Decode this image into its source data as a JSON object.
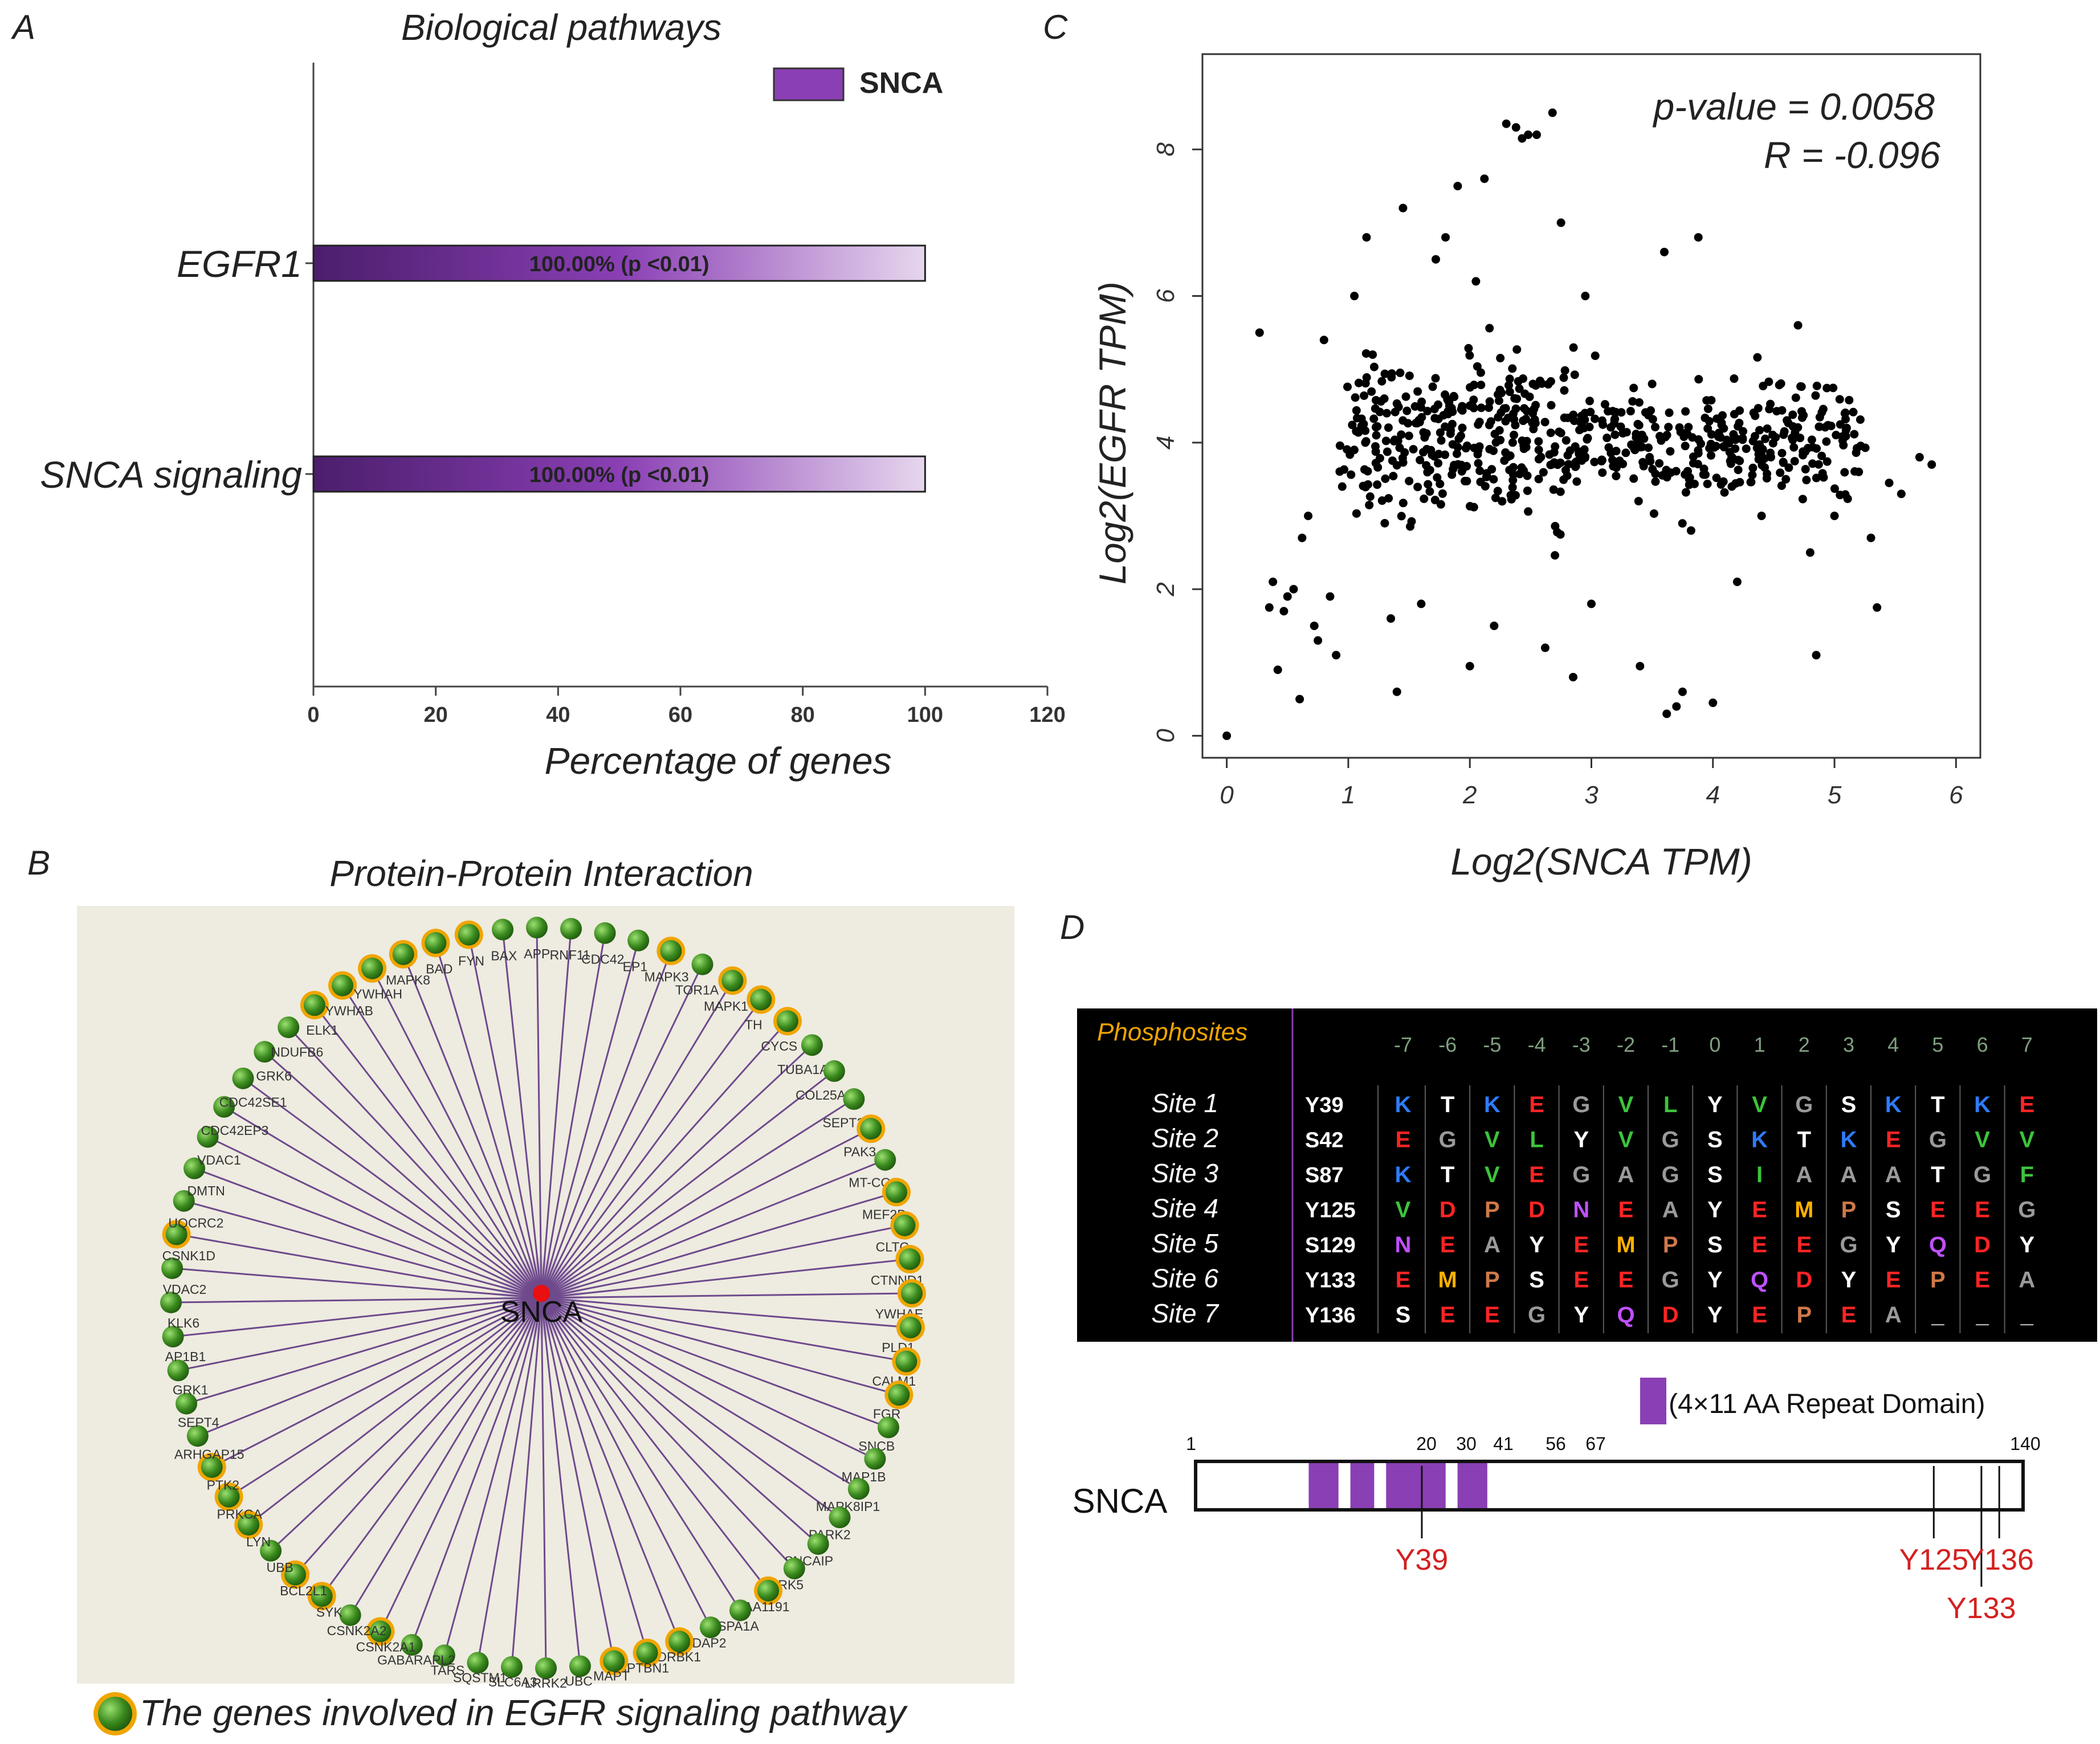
{
  "colors": {
    "bar_dark": "#4b1e6c",
    "bar_mid": "#8a3fb4",
    "bar_light": "#e6d6ee",
    "legend_purple": "#8a3fb4",
    "network_bg": "#eeebe0",
    "edge": "#6e4a8c",
    "node_green": "#3b8a1e",
    "ring_orange": "#f0a500",
    "center_red": "#e81010",
    "table_bg": "#000000",
    "phospho_orange": "#f0a500",
    "red_label": "#d42020",
    "repeat_purple": "#8a3fb4",
    "aa_K": "#2e7cff",
    "aa_E": "#ff2424",
    "aa_D": "#ff2424",
    "aa_V": "#3cc43c",
    "aa_L": "#3cc43c",
    "aa_I": "#3cc43c",
    "aa_F": "#3cc43c",
    "aa_G": "#9a9a9a",
    "aa_A": "#9a9a9a",
    "aa_N": "#c050ff",
    "aa_Q": "#c050ff",
    "aa_M": "#ffb000",
    "aa_P": "#d0784a",
    "aa_Y": "#ffffff",
    "aa_T": "#ffffff",
    "aa_S": "#ffffff",
    "aa__": "#ffffff"
  },
  "panel_letters": {
    "a": "A",
    "b": "B",
    "c": "C",
    "d": "D"
  },
  "chart_data": [
    {
      "id": "A",
      "type": "bar",
      "orientation": "horizontal",
      "title": "Biological pathways",
      "categories": [
        "EGFR1",
        "SNCA signaling"
      ],
      "values": [
        100,
        100
      ],
      "data_labels": [
        "100.00% (p <0.01)",
        "100.00% (p <0.01)"
      ],
      "legend": [
        "SNCA"
      ],
      "legend_position": "top-right",
      "xlabel": "Percentage of genes",
      "xlim": [
        0,
        120
      ],
      "xticks": [
        0,
        20,
        40,
        60,
        80,
        100,
        120
      ]
    },
    {
      "id": "C",
      "type": "scatter",
      "xlabel": "Log2(SNCA TPM)",
      "ylabel": "Log2(EGFR TPM)",
      "xlim": [
        -0.2,
        6.2
      ],
      "ylim": [
        -0.3,
        9.3
      ],
      "xticks": [
        0,
        1,
        2,
        3,
        4,
        5,
        6
      ],
      "yticks": [
        0,
        2,
        4,
        6,
        8
      ],
      "annotations": [
        "p-value = 0.0058",
        "R = -0.096"
      ],
      "n_points": 700,
      "points": [
        [
          0,
          0
        ],
        [
          0.27,
          5.5
        ],
        [
          0.35,
          1.75
        ],
        [
          0.38,
          2.1
        ],
        [
          0.42,
          0.9
        ],
        [
          0.47,
          1.7
        ],
        [
          0.5,
          1.9
        ],
        [
          0.55,
          2.0
        ],
        [
          0.6,
          0.5
        ],
        [
          0.62,
          2.7
        ],
        [
          0.67,
          3.0
        ],
        [
          0.72,
          1.5
        ],
        [
          0.75,
          1.3
        ],
        [
          0.8,
          5.4
        ],
        [
          0.85,
          1.9
        ],
        [
          0.9,
          1.1
        ],
        [
          0.95,
          3.4
        ],
        [
          1.05,
          6.0
        ],
        [
          1.15,
          6.8
        ],
        [
          1.2,
          5.2
        ],
        [
          1.4,
          0.6
        ],
        [
          1.3,
          2.9
        ],
        [
          1.35,
          1.6
        ],
        [
          1.45,
          7.2
        ],
        [
          1.6,
          1.8
        ],
        [
          1.72,
          6.5
        ],
        [
          1.8,
          6.8
        ],
        [
          1.9,
          7.5
        ],
        [
          2.0,
          0.95
        ],
        [
          2.05,
          6.2
        ],
        [
          2.12,
          7.6
        ],
        [
          2.2,
          1.5
        ],
        [
          2.3,
          8.35
        ],
        [
          2.38,
          8.3
        ],
        [
          2.43,
          8.15
        ],
        [
          2.48,
          8.2
        ],
        [
          2.55,
          8.2
        ],
        [
          2.62,
          1.2
        ],
        [
          2.68,
          8.5
        ],
        [
          2.75,
          7.0
        ],
        [
          2.85,
          0.8
        ],
        [
          2.95,
          6.0
        ],
        [
          3.0,
          1.8
        ],
        [
          3.4,
          0.95
        ],
        [
          3.5,
          4.8
        ],
        [
          3.6,
          6.6
        ],
        [
          3.62,
          0.3
        ],
        [
          3.7,
          0.4
        ],
        [
          3.75,
          0.6
        ],
        [
          3.82,
          2.8
        ],
        [
          3.88,
          6.8
        ],
        [
          4.0,
          0.45
        ],
        [
          4.2,
          2.1
        ],
        [
          4.4,
          3.0
        ],
        [
          4.6,
          3.5
        ],
        [
          4.7,
          5.6
        ],
        [
          4.8,
          2.5
        ],
        [
          4.85,
          1.1
        ],
        [
          5.0,
          3.0
        ],
        [
          5.1,
          4.2
        ],
        [
          5.2,
          3.6
        ],
        [
          5.3,
          2.7
        ],
        [
          5.35,
          1.75
        ],
        [
          5.45,
          3.45
        ],
        [
          5.55,
          3.3
        ],
        [
          5.7,
          3.8
        ],
        [
          5.8,
          3.7
        ]
      ]
    }
  ],
  "ppi": {
    "title": "Protein-Protein Interaction",
    "center_label": "SNCA",
    "nodes": [
      {
        "label": "BAX",
        "ring": false
      },
      {
        "label": "APP",
        "ring": false
      },
      {
        "label": "RNF11",
        "ring": false
      },
      {
        "label": "CDC42",
        "ring": false
      },
      {
        "label": "EP1",
        "ring": false
      },
      {
        "label": "MAPK3",
        "ring": true
      },
      {
        "label": "TOR1A",
        "ring": false
      },
      {
        "label": "MAPK1",
        "ring": true
      },
      {
        "label": "TH",
        "ring": true
      },
      {
        "label": "CYCS",
        "ring": true
      },
      {
        "label": "TUBA1A",
        "ring": false
      },
      {
        "label": "COL25A1",
        "ring": false
      },
      {
        "label": "SEPT2",
        "ring": false
      },
      {
        "label": "PAK3",
        "ring": true
      },
      {
        "label": "MT-CO3",
        "ring": false
      },
      {
        "label": "MEF2D",
        "ring": true
      },
      {
        "label": "CLTC",
        "ring": true
      },
      {
        "label": "CTNND1",
        "ring": true
      },
      {
        "label": "YWHAE",
        "ring": true
      },
      {
        "label": "PLD1",
        "ring": true
      },
      {
        "label": "CALM1",
        "ring": true
      },
      {
        "label": "FGR",
        "ring": true
      },
      {
        "label": "SNCB",
        "ring": false
      },
      {
        "label": "MAP1B",
        "ring": false
      },
      {
        "label": "MAPK8IP1",
        "ring": false
      },
      {
        "label": "PARK2",
        "ring": false
      },
      {
        "label": "SNCAIP",
        "ring": false
      },
      {
        "label": "GRK5",
        "ring": false
      },
      {
        "label": "KIAA1191",
        "ring": true
      },
      {
        "label": "HSPA1A",
        "ring": false
      },
      {
        "label": "ADAP2",
        "ring": false
      },
      {
        "label": "ADRBK1",
        "ring": true
      },
      {
        "label": "SPTBN1",
        "ring": true
      },
      {
        "label": "MAPT",
        "ring": true
      },
      {
        "label": "UBC",
        "ring": false
      },
      {
        "label": "LRRK2",
        "ring": false
      },
      {
        "label": "SLC6A3",
        "ring": false
      },
      {
        "label": "SQSTM1",
        "ring": false
      },
      {
        "label": "TARS",
        "ring": false
      },
      {
        "label": "GABARAPL2",
        "ring": false
      },
      {
        "label": "CSNK2A1",
        "ring": true
      },
      {
        "label": "CSNK2A2",
        "ring": false
      },
      {
        "label": "SYK",
        "ring": true
      },
      {
        "label": "BCL2L1",
        "ring": true
      },
      {
        "label": "UBB",
        "ring": false
      },
      {
        "label": "LYN",
        "ring": true
      },
      {
        "label": "PRKCA",
        "ring": true
      },
      {
        "label": "PTK2",
        "ring": true
      },
      {
        "label": "ARHGAP15",
        "ring": false
      },
      {
        "label": "SEPT4",
        "ring": false
      },
      {
        "label": "GRK1",
        "ring": false
      },
      {
        "label": "AP1B1",
        "ring": false
      },
      {
        "label": "KLK6",
        "ring": false
      },
      {
        "label": "VDAC2",
        "ring": false
      },
      {
        "label": "CSNK1D",
        "ring": true
      },
      {
        "label": "UQCRC2",
        "ring": false
      },
      {
        "label": "DMTN",
        "ring": false
      },
      {
        "label": "VDAC1",
        "ring": false
      },
      {
        "label": "CDC42EP3",
        "ring": false
      },
      {
        "label": "CDC42SE1",
        "ring": false
      },
      {
        "label": "GRK6",
        "ring": false
      },
      {
        "label": "NDUFB6",
        "ring": false
      },
      {
        "label": "ELK1",
        "ring": true
      },
      {
        "label": "YWHAB",
        "ring": true
      },
      {
        "label": "YWHAH",
        "ring": true
      },
      {
        "label": "MAPK8",
        "ring": true
      },
      {
        "label": "BAD",
        "ring": true
      },
      {
        "label": "FYN",
        "ring": true
      }
    ],
    "legend_text": "The genes involved in EGFR signaling pathway"
  },
  "phospho": {
    "header_label": "Phosphosites",
    "positions": [
      "-7",
      "-6",
      "-5",
      "-4",
      "-3",
      "-2",
      "-1",
      "0",
      "1",
      "2",
      "3",
      "4",
      "5",
      "6",
      "7"
    ],
    "sites": [
      {
        "name": "Site 1",
        "residue": "Y39",
        "seq": [
          "K",
          "T",
          "K",
          "E",
          "G",
          "V",
          "L",
          "Y",
          "V",
          "G",
          "S",
          "K",
          "T",
          "K",
          "E"
        ]
      },
      {
        "name": "Site 2",
        "residue": "S42",
        "seq": [
          "E",
          "G",
          "V",
          "L",
          "Y",
          "V",
          "G",
          "S",
          "K",
          "T",
          "K",
          "E",
          "G",
          "V",
          "V"
        ]
      },
      {
        "name": "Site 3",
        "residue": "S87",
        "seq": [
          "K",
          "T",
          "V",
          "E",
          "G",
          "A",
          "G",
          "S",
          "I",
          "A",
          "A",
          "A",
          "T",
          "G",
          "F"
        ]
      },
      {
        "name": "Site 4",
        "residue": "Y125",
        "seq": [
          "V",
          "D",
          "P",
          "D",
          "N",
          "E",
          "A",
          "Y",
          "E",
          "M",
          "P",
          "S",
          "E",
          "E",
          "G"
        ]
      },
      {
        "name": "Site 5",
        "residue": "S129",
        "seq": [
          "N",
          "E",
          "A",
          "Y",
          "E",
          "M",
          "P",
          "S",
          "E",
          "E",
          "G",
          "Y",
          "Q",
          "D",
          "Y"
        ]
      },
      {
        "name": "Site 6",
        "residue": "Y133",
        "seq": [
          "E",
          "M",
          "P",
          "S",
          "E",
          "E",
          "G",
          "Y",
          "Q",
          "D",
          "Y",
          "E",
          "P",
          "E",
          "A"
        ]
      },
      {
        "name": "Site 7",
        "residue": "Y136",
        "seq": [
          "S",
          "E",
          "E",
          "G",
          "Y",
          "Q",
          "D",
          "Y",
          "E",
          "P",
          "E",
          "A",
          "_",
          "_",
          "_"
        ]
      }
    ]
  },
  "domain_map": {
    "protein": "SNCA",
    "legend_text": "(4×11 AA Repeat Domain)",
    "length": 140,
    "start_label": "1",
    "end_label": "140",
    "repeat_ticks": [
      {
        "pos": 20,
        "label": "20"
      },
      {
        "pos": 30,
        "label": "30"
      },
      {
        "pos": 41,
        "label": "41"
      },
      {
        "pos": 56,
        "label": "56"
      },
      {
        "pos": 67,
        "label": "67"
      }
    ],
    "repeat_blocks": [
      [
        20,
        25
      ],
      [
        27,
        31
      ],
      [
        33,
        43
      ],
      [
        45,
        50
      ]
    ],
    "sites": [
      {
        "pos": 39,
        "label": "Y39",
        "level": 1
      },
      {
        "pos": 125,
        "label": "Y125",
        "level": 1
      },
      {
        "pos": 133,
        "label": "Y133",
        "level": 2
      },
      {
        "pos": 136,
        "label": "Y136",
        "level": 1
      }
    ]
  }
}
